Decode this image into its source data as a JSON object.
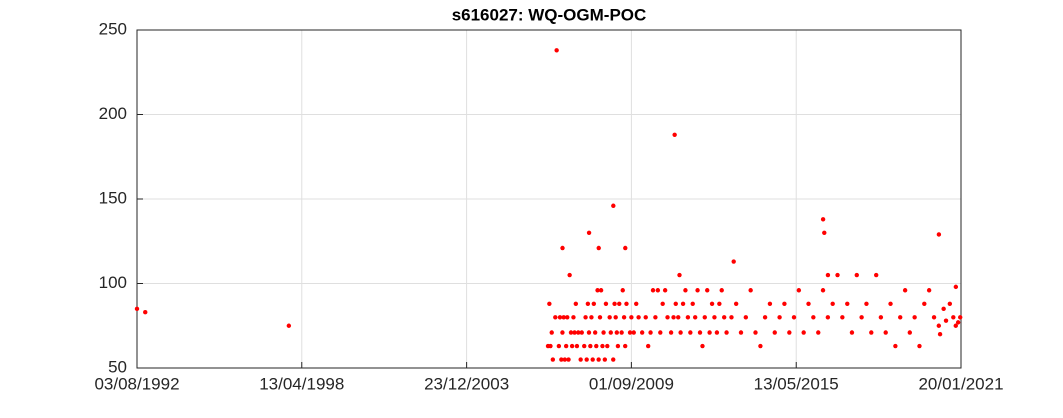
{
  "chart_data": {
    "type": "scatter",
    "title": "s616027: WQ-OGM-POC",
    "color": "#ff0000",
    "grid": true,
    "xlim": [
      "03/08/1992",
      "20/01/2021"
    ],
    "xticks": [
      "03/08/1992",
      "13/04/1998",
      "23/12/2003",
      "01/09/2009",
      "13/05/2015",
      "20/01/2021"
    ],
    "ylim": [
      50,
      250
    ],
    "yticks": [
      50,
      100,
      150,
      200,
      250
    ],
    "x": [
      "03/08/1992",
      "15/11/1992",
      "01/11/1997",
      "15/10/2006",
      "01/11/2006",
      "15/11/2006",
      "01/12/2006",
      "15/12/2006",
      "15/01/2007",
      "01/03/2007",
      "15/03/2007",
      "01/04/2007",
      "15/04/2007",
      "01/05/2007",
      "15/05/2007",
      "01/06/2007",
      "15/06/2007",
      "01/07/2007",
      "01/08/2007",
      "15/08/2007",
      "01/09/2007",
      "15/09/2007",
      "01/10/2007",
      "15/10/2007",
      "01/11/2007",
      "01/12/2007",
      "15/12/2007",
      "15/01/2008",
      "01/02/2008",
      "15/02/2008",
      "01/03/2008",
      "15/03/2008",
      "01/04/2008",
      "15/04/2008",
      "01/05/2008",
      "15/05/2008",
      "01/06/2008",
      "15/06/2008",
      "01/07/2008",
      "15/07/2008",
      "01/08/2008",
      "15/08/2008",
      "01/09/2008",
      "15/09/2008",
      "01/10/2008",
      "15/10/2008",
      "01/11/2008",
      "01/12/2008",
      "15/12/2008",
      "15/01/2009",
      "01/02/2009",
      "15/02/2009",
      "01/03/2009",
      "15/03/2009",
      "01/04/2009",
      "01/05/2009",
      "15/05/2009",
      "01/06/2009",
      "15/06/2009",
      "01/07/2009",
      "15/08/2009",
      "01/09/2009",
      "01/10/2009",
      "01/11/2009",
      "01/12/2009",
      "15/01/2010",
      "01/03/2010",
      "01/04/2010",
      "01/05/2010",
      "01/06/2010",
      "01/07/2010",
      "01/08/2010",
      "01/09/2010",
      "01/10/2010",
      "01/11/2010",
      "01/12/2010",
      "15/01/2011",
      "15/02/2011",
      "15/03/2011",
      "15/04/2011",
      "15/05/2011",
      "15/06/2011",
      "15/07/2011",
      "15/08/2011",
      "15/09/2011",
      "15/10/2011",
      "15/11/2011",
      "15/12/2011",
      "15/01/2012",
      "15/02/2012",
      "15/03/2012",
      "15/04/2012",
      "15/05/2012",
      "15/06/2012",
      "15/07/2012",
      "15/08/2012",
      "15/09/2012",
      "15/10/2012",
      "15/11/2012",
      "15/12/2012",
      "15/02/2013",
      "15/04/2013",
      "15/06/2013",
      "15/08/2013",
      "15/10/2013",
      "15/12/2013",
      "15/02/2014",
      "15/04/2014",
      "15/06/2014",
      "15/08/2014",
      "15/10/2014",
      "15/12/2014",
      "15/02/2015",
      "15/04/2015",
      "15/06/2015",
      "15/08/2015",
      "15/10/2015",
      "15/12/2015",
      "15/02/2016",
      "15/04/2016",
      "15/06/2016",
      "15/08/2016",
      "15/10/2016",
      "15/12/2016",
      "15/02/2017",
      "15/04/2017",
      "15/06/2017",
      "15/08/2017",
      "15/10/2017",
      "15/12/2017",
      "15/02/2018",
      "15/04/2018",
      "15/06/2018",
      "15/08/2018",
      "15/10/2018",
      "15/12/2018",
      "15/02/2019",
      "15/04/2019",
      "15/06/2019",
      "15/08/2019",
      "15/10/2019",
      "15/12/2019",
      "15/02/2020",
      "15/04/2020",
      "01/05/2020",
      "15/06/2020",
      "15/07/2020",
      "01/09/2020",
      "15/10/2020",
      "15/11/2020",
      "15/12/2020",
      "10/01/2021",
      "01/02/2007",
      "16/04/2007",
      "15/07/2007",
      "16/03/2008",
      "16/07/2008",
      "16/01/2009",
      "16/06/2009",
      "01/03/2011",
      "01/05/2011",
      "15/03/2013",
      "16/04/2016",
      "01/05/2016",
      "16/06/2016",
      "16/04/2020",
      "16/11/2020"
    ],
    "values": [
      85,
      83,
      75,
      63,
      88,
      63,
      71,
      55,
      80,
      63,
      80,
      55,
      71,
      80,
      55,
      63,
      80,
      55,
      71,
      63,
      80,
      71,
      88,
      63,
      71,
      55,
      71,
      63,
      80,
      55,
      88,
      71,
      63,
      80,
      55,
      88,
      71,
      63,
      96,
      55,
      80,
      96,
      63,
      71,
      55,
      88,
      63,
      80,
      71,
      55,
      88,
      80,
      71,
      63,
      88,
      71,
      96,
      80,
      63,
      88,
      71,
      80,
      71,
      88,
      80,
      71,
      80,
      63,
      71,
      96,
      80,
      96,
      71,
      88,
      96,
      80,
      71,
      80,
      88,
      80,
      71,
      88,
      96,
      80,
      71,
      88,
      80,
      96,
      71,
      63,
      80,
      96,
      71,
      88,
      80,
      71,
      88,
      96,
      80,
      71,
      80,
      88,
      71,
      80,
      96,
      71,
      63,
      80,
      88,
      71,
      80,
      88,
      71,
      80,
      96,
      71,
      88,
      80,
      71,
      96,
      80,
      88,
      105,
      80,
      88,
      71,
      105,
      80,
      88,
      71,
      105,
      80,
      71,
      88,
      63,
      80,
      96,
      71,
      80,
      63,
      88,
      96,
      80,
      75,
      70,
      85,
      78,
      88,
      80,
      75,
      77,
      80,
      238,
      121,
      105,
      130,
      121,
      146,
      121,
      188,
      105,
      113,
      138,
      130,
      105,
      129,
      98
    ]
  }
}
